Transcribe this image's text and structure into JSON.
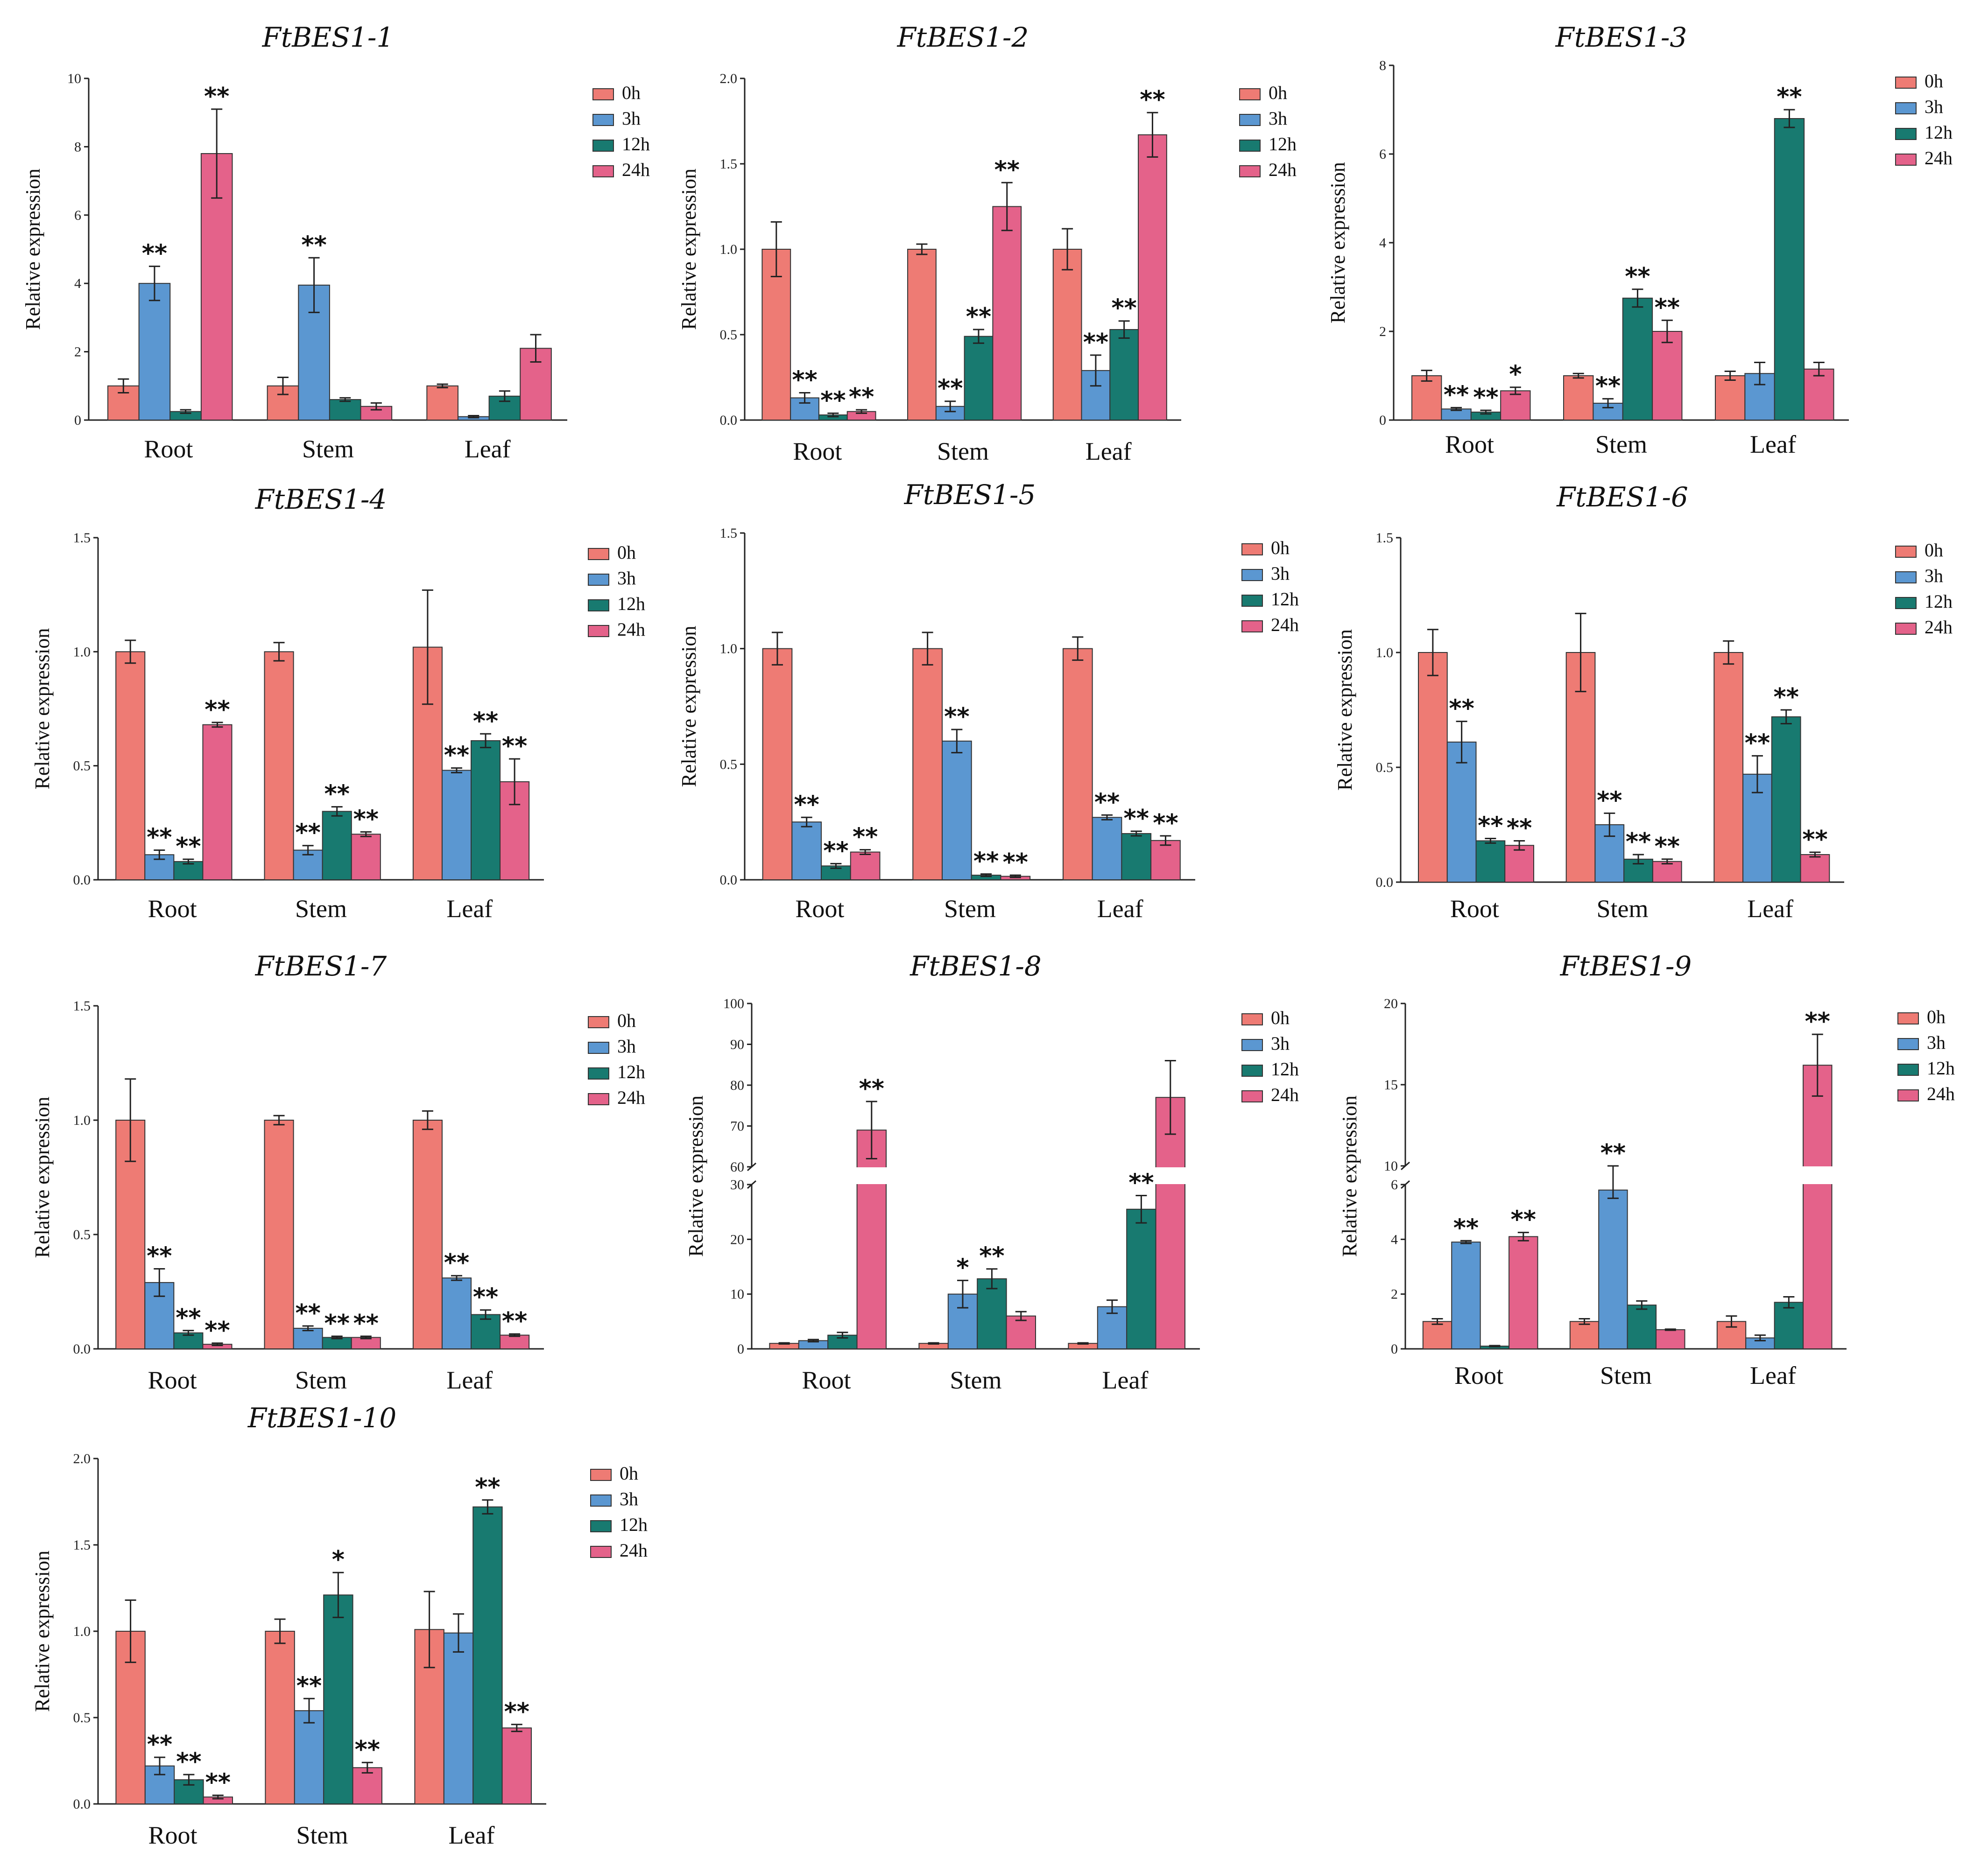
{
  "colors": {
    "0h": "#EE7B74",
    "3h": "#5B97D1",
    "12h": "#187A70",
    "24h": "#E4628A"
  },
  "chart_data": [
    {
      "type": "bar",
      "title": "FtBES1-1",
      "ylabel": "Relative expression",
      "ylim": [
        0,
        10
      ],
      "yticks": [
        "0",
        "2",
        "4",
        "6",
        "8",
        "10"
      ],
      "categories": [
        "Root",
        "Stem",
        "Leaf"
      ],
      "legend": [
        "0h",
        "3h",
        "12h",
        "24h"
      ],
      "series": [
        {
          "name": "0h",
          "values": [
            1.0,
            1.0,
            1.0
          ],
          "errors": [
            0.2,
            0.25,
            0.05
          ],
          "sig": [
            "",
            "",
            ""
          ]
        },
        {
          "name": "3h",
          "values": [
            4.0,
            3.95,
            0.1
          ],
          "errors": [
            0.5,
            0.8,
            0.03
          ],
          "sig": [
            "**",
            "**",
            ""
          ]
        },
        {
          "name": "12h",
          "values": [
            0.25,
            0.6,
            0.7
          ],
          "errors": [
            0.05,
            0.05,
            0.15
          ],
          "sig": [
            "",
            "",
            ""
          ]
        },
        {
          "name": "24h",
          "values": [
            7.8,
            0.4,
            2.1
          ],
          "errors": [
            1.3,
            0.1,
            0.4
          ],
          "sig": [
            "**",
            "",
            ""
          ]
        }
      ]
    },
    {
      "type": "bar",
      "title": "FtBES1-2",
      "ylabel": "Relative expression",
      "ylim": [
        0,
        2
      ],
      "yticks": [
        "0.0",
        "0.5",
        "1.0",
        "1.5",
        "2.0"
      ],
      "categories": [
        "Root",
        "Stem",
        "Leaf"
      ],
      "legend": [
        "0h",
        "3h",
        "12h",
        "24h"
      ],
      "series": [
        {
          "name": "0h",
          "values": [
            1.0,
            1.0,
            1.0
          ],
          "errors": [
            0.16,
            0.03,
            0.12
          ],
          "sig": [
            "",
            "",
            ""
          ]
        },
        {
          "name": "3h",
          "values": [
            0.13,
            0.08,
            0.29
          ],
          "errors": [
            0.03,
            0.03,
            0.09
          ],
          "sig": [
            "**",
            "**",
            "**"
          ]
        },
        {
          "name": "12h",
          "values": [
            0.03,
            0.49,
            0.53
          ],
          "errors": [
            0.01,
            0.04,
            0.05
          ],
          "sig": [
            "**",
            "**",
            "**"
          ]
        },
        {
          "name": "24h",
          "values": [
            0.05,
            1.25,
            1.67
          ],
          "errors": [
            0.01,
            0.14,
            0.13
          ],
          "sig": [
            "**",
            "**",
            "**"
          ]
        }
      ]
    },
    {
      "type": "bar",
      "title": "FtBES1-3",
      "ylabel": "Relative expression",
      "ylim": [
        0,
        8
      ],
      "yticks": [
        "0",
        "2",
        "4",
        "6",
        "8"
      ],
      "categories": [
        "Root",
        "Stem",
        "Leaf"
      ],
      "legend": [
        "0h",
        "3h",
        "12h",
        "24h"
      ],
      "series": [
        {
          "name": "0h",
          "values": [
            1.0,
            1.0,
            1.0
          ],
          "errors": [
            0.12,
            0.05,
            0.1
          ],
          "sig": [
            "",
            "",
            ""
          ]
        },
        {
          "name": "3h",
          "values": [
            0.25,
            0.38,
            1.05
          ],
          "errors": [
            0.03,
            0.1,
            0.25
          ],
          "sig": [
            "**",
            "**",
            ""
          ]
        },
        {
          "name": "12h",
          "values": [
            0.18,
            2.75,
            6.8
          ],
          "errors": [
            0.04,
            0.2,
            0.2
          ],
          "sig": [
            "**",
            "**",
            "**"
          ]
        },
        {
          "name": "24h",
          "values": [
            0.66,
            2.0,
            1.15
          ],
          "errors": [
            0.08,
            0.25,
            0.15
          ],
          "sig": [
            "*",
            "**",
            ""
          ]
        }
      ]
    },
    {
      "type": "bar",
      "title": "FtBES1-4",
      "ylabel": "Relative expression",
      "ylim": [
        0,
        1.5
      ],
      "yticks": [
        "0.0",
        "0.5",
        "1.0",
        "1.5"
      ],
      "categories": [
        "Root",
        "Stem",
        "Leaf"
      ],
      "legend": [
        "0h",
        "3h",
        "12h",
        "24h"
      ],
      "series": [
        {
          "name": "0h",
          "values": [
            1.0,
            1.0,
            1.02
          ],
          "errors": [
            0.05,
            0.04,
            0.25
          ],
          "sig": [
            "",
            "",
            ""
          ]
        },
        {
          "name": "3h",
          "values": [
            0.11,
            0.13,
            0.48
          ],
          "errors": [
            0.02,
            0.02,
            0.01
          ],
          "sig": [
            "**",
            "**",
            "**"
          ]
        },
        {
          "name": "12h",
          "values": [
            0.08,
            0.3,
            0.61
          ],
          "errors": [
            0.01,
            0.02,
            0.03
          ],
          "sig": [
            "**",
            "**",
            "**"
          ]
        },
        {
          "name": "24h",
          "values": [
            0.68,
            0.2,
            0.43
          ],
          "errors": [
            0.01,
            0.01,
            0.1
          ],
          "sig": [
            "**",
            "**",
            "**"
          ]
        }
      ]
    },
    {
      "type": "bar",
      "title": "FtBES1-5",
      "ylabel": "Relative expression",
      "ylim": [
        0,
        1.5
      ],
      "yticks": [
        "0.0",
        "0.5",
        "1.0",
        "1.5"
      ],
      "categories": [
        "Root",
        "Stem",
        "Leaf"
      ],
      "legend": [
        "0h",
        "3h",
        "12h",
        "24h"
      ],
      "series": [
        {
          "name": "0h",
          "values": [
            1.0,
            1.0,
            1.0
          ],
          "errors": [
            0.07,
            0.07,
            0.05
          ],
          "sig": [
            "",
            "",
            ""
          ]
        },
        {
          "name": "3h",
          "values": [
            0.25,
            0.6,
            0.27
          ],
          "errors": [
            0.02,
            0.05,
            0.01
          ],
          "sig": [
            "**",
            "**",
            "**"
          ]
        },
        {
          "name": "12h",
          "values": [
            0.06,
            0.02,
            0.2
          ],
          "errors": [
            0.01,
            0.005,
            0.01
          ],
          "sig": [
            "**",
            "**",
            "**"
          ]
        },
        {
          "name": "24h",
          "values": [
            0.12,
            0.015,
            0.17
          ],
          "errors": [
            0.01,
            0.005,
            0.02
          ],
          "sig": [
            "**",
            "**",
            "**"
          ]
        }
      ]
    },
    {
      "type": "bar",
      "title": "FtBES1-6",
      "ylabel": "Relative expression",
      "ylim": [
        0,
        1.5
      ],
      "yticks": [
        "0.0",
        "0.5",
        "1.0",
        "1.5"
      ],
      "categories": [
        "Root",
        "Stem",
        "Leaf"
      ],
      "legend": [
        "0h",
        "3h",
        "12h",
        "24h"
      ],
      "series": [
        {
          "name": "0h",
          "values": [
            1.0,
            1.0,
            1.0
          ],
          "errors": [
            0.1,
            0.17,
            0.05
          ],
          "sig": [
            "",
            "",
            ""
          ]
        },
        {
          "name": "3h",
          "values": [
            0.61,
            0.25,
            0.47
          ],
          "errors": [
            0.09,
            0.05,
            0.08
          ],
          "sig": [
            "**",
            "**",
            "**"
          ]
        },
        {
          "name": "12h",
          "values": [
            0.18,
            0.1,
            0.72
          ],
          "errors": [
            0.01,
            0.02,
            0.03
          ],
          "sig": [
            "**",
            "**",
            "**"
          ]
        },
        {
          "name": "24h",
          "values": [
            0.16,
            0.09,
            0.12
          ],
          "errors": [
            0.02,
            0.01,
            0.01
          ],
          "sig": [
            "**",
            "**",
            "**"
          ]
        }
      ]
    },
    {
      "type": "bar",
      "title": "FtBES1-7",
      "ylabel": "Relative expression",
      "ylim": [
        0,
        1.5
      ],
      "yticks": [
        "0.0",
        "0.5",
        "1.0",
        "1.5"
      ],
      "categories": [
        "Root",
        "Stem",
        "Leaf"
      ],
      "legend": [
        "0h",
        "3h",
        "12h",
        "24h"
      ],
      "series": [
        {
          "name": "0h",
          "values": [
            1.0,
            1.0,
            1.0
          ],
          "errors": [
            0.18,
            0.02,
            0.04
          ],
          "sig": [
            "",
            "",
            ""
          ]
        },
        {
          "name": "3h",
          "values": [
            0.29,
            0.09,
            0.31
          ],
          "errors": [
            0.06,
            0.01,
            0.01
          ],
          "sig": [
            "**",
            "**",
            "**"
          ]
        },
        {
          "name": "12h",
          "values": [
            0.07,
            0.05,
            0.15
          ],
          "errors": [
            0.01,
            0.005,
            0.02
          ],
          "sig": [
            "**",
            "**",
            "**"
          ]
        },
        {
          "name": "24h",
          "values": [
            0.02,
            0.05,
            0.06
          ],
          "errors": [
            0.005,
            0.005,
            0.005
          ],
          "sig": [
            "**",
            "**",
            "**"
          ]
        }
      ]
    },
    {
      "type": "bar",
      "title": "FtBES1-8",
      "ylabel": "Relative expression",
      "ylim": [
        0,
        100
      ],
      "broken_axis": {
        "lower": [
          0,
          30
        ],
        "upper": [
          60,
          100
        ]
      },
      "yticks": [
        "0",
        "10",
        "20",
        "30",
        "60",
        "70",
        "80",
        "90",
        "100"
      ],
      "categories": [
        "Root",
        "Stem",
        "Leaf"
      ],
      "legend": [
        "0h",
        "3h",
        "12h",
        "24h"
      ],
      "series": [
        {
          "name": "0h",
          "values": [
            1.0,
            1.0,
            1.0
          ],
          "errors": [
            0.1,
            0.1,
            0.1
          ],
          "sig": [
            "",
            "",
            ""
          ]
        },
        {
          "name": "3h",
          "values": [
            1.5,
            10,
            7.7
          ],
          "errors": [
            0.2,
            2.5,
            1.2
          ],
          "sig": [
            "",
            "*",
            ""
          ]
        },
        {
          "name": "12h",
          "values": [
            2.5,
            12.8,
            25.5
          ],
          "errors": [
            0.5,
            1.8,
            2.5
          ],
          "sig": [
            "",
            "**",
            "**"
          ]
        },
        {
          "name": "24h",
          "values": [
            69,
            6,
            77
          ],
          "errors": [
            7,
            0.8,
            9
          ],
          "sig": [
            "**",
            "",
            ""
          ]
        }
      ]
    },
    {
      "type": "bar",
      "title": "FtBES1-9",
      "ylabel": "Relative expression",
      "ylim": [
        0,
        20
      ],
      "broken_axis": {
        "lower": [
          0,
          6
        ],
        "upper": [
          10,
          20
        ]
      },
      "yticks": [
        "0",
        "2",
        "4",
        "6",
        "10",
        "15",
        "20"
      ],
      "categories": [
        "Root",
        "Stem",
        "Leaf"
      ],
      "legend": [
        "0h",
        "3h",
        "12h",
        "24h"
      ],
      "series": [
        {
          "name": "0h",
          "values": [
            1.0,
            1.0,
            1.0
          ],
          "errors": [
            0.1,
            0.1,
            0.2
          ],
          "sig": [
            "",
            "",
            ""
          ]
        },
        {
          "name": "3h",
          "values": [
            3.9,
            5.8,
            0.4
          ],
          "errors": [
            0.05,
            0.3,
            0.1
          ],
          "sig": [
            "**",
            "**",
            ""
          ]
        },
        {
          "name": "12h",
          "values": [
            0.1,
            1.6,
            1.7
          ],
          "errors": [
            0.02,
            0.15,
            0.2
          ],
          "sig": [
            "",
            "",
            ""
          ]
        },
        {
          "name": "24h",
          "values": [
            4.1,
            0.7,
            16.2
          ],
          "errors": [
            0.15,
            0.02,
            1.9
          ],
          "sig": [
            "**",
            "",
            "**"
          ]
        }
      ]
    },
    {
      "type": "bar",
      "title": "FtBES1-10",
      "ylabel": "Relative expression",
      "ylim": [
        0,
        2
      ],
      "yticks": [
        "0.0",
        "0.5",
        "1.0",
        "1.5",
        "2.0"
      ],
      "categories": [
        "Root",
        "Stem",
        "Leaf"
      ],
      "legend": [
        "0h",
        "3h",
        "12h",
        "24h"
      ],
      "series": [
        {
          "name": "0h",
          "values": [
            1.0,
            1.0,
            1.01
          ],
          "errors": [
            0.18,
            0.07,
            0.22
          ],
          "sig": [
            "",
            "",
            ""
          ]
        },
        {
          "name": "3h",
          "values": [
            0.22,
            0.54,
            0.99
          ],
          "errors": [
            0.05,
            0.07,
            0.11
          ],
          "sig": [
            "**",
            "**",
            ""
          ]
        },
        {
          "name": "12h",
          "values": [
            0.14,
            1.21,
            1.72
          ],
          "errors": [
            0.03,
            0.13,
            0.04
          ],
          "sig": [
            "**",
            "*",
            "**"
          ]
        },
        {
          "name": "24h",
          "values": [
            0.04,
            0.21,
            0.44
          ],
          "errors": [
            0.01,
            0.03,
            0.02
          ],
          "sig": [
            "**",
            "**",
            "**"
          ]
        }
      ]
    }
  ]
}
